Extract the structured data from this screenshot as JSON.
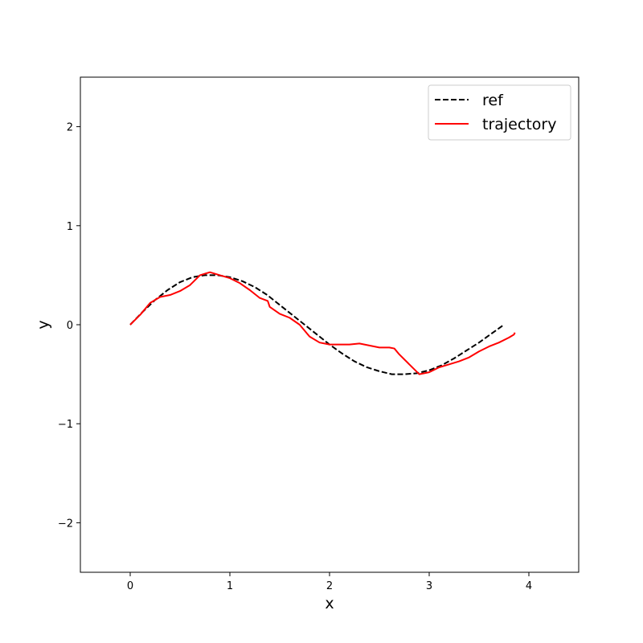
{
  "chart_data": {
    "type": "line",
    "title": "",
    "xlabel": "x",
    "ylabel": "y",
    "xlim": [
      -0.5,
      4.5
    ],
    "ylim": [
      -2.5,
      2.5
    ],
    "xticks": [
      0,
      1,
      2,
      3,
      4
    ],
    "yticks": [
      -2,
      -1,
      0,
      1,
      2
    ],
    "xtick_labels": [
      "0",
      "1",
      "2",
      "3",
      "4"
    ],
    "ytick_labels": [
      "−2",
      "−1",
      "0",
      "1",
      "2"
    ],
    "grid": false,
    "legend_position": "upper-right",
    "series": [
      {
        "name": "ref",
        "color": "#000000",
        "style": "dashed",
        "x": [
          0,
          0.125,
          0.25,
          0.375,
          0.5,
          0.625,
          0.75,
          0.875,
          1.0,
          1.125,
          1.25,
          1.375,
          1.5,
          1.625,
          1.75,
          1.875,
          2.0,
          2.125,
          2.25,
          2.375,
          2.5,
          2.625,
          2.75,
          2.875,
          3.0,
          3.125,
          3.25,
          3.375,
          3.5,
          3.625,
          3.75
        ],
        "y": [
          0,
          0.13,
          0.25,
          0.35,
          0.43,
          0.48,
          0.5,
          0.5,
          0.48,
          0.44,
          0.38,
          0.3,
          0.2,
          0.1,
          0.0,
          -0.1,
          -0.2,
          -0.29,
          -0.37,
          -0.43,
          -0.47,
          -0.5,
          -0.5,
          -0.49,
          -0.46,
          -0.41,
          -0.34,
          -0.26,
          -0.18,
          -0.09,
          0.0
        ]
      },
      {
        "name": "trajectory",
        "color": "#ff0000",
        "style": "solid",
        "x": [
          0,
          0.1,
          0.2,
          0.3,
          0.4,
          0.5,
          0.6,
          0.7,
          0.8,
          0.9,
          1.0,
          1.1,
          1.2,
          1.3,
          1.38,
          1.4,
          1.5,
          1.6,
          1.7,
          1.8,
          1.9,
          2.0,
          2.1,
          2.2,
          2.3,
          2.4,
          2.5,
          2.6,
          2.65,
          2.7,
          2.8,
          2.9,
          3.0,
          3.1,
          3.2,
          3.3,
          3.4,
          3.5,
          3.6,
          3.7,
          3.8,
          3.85,
          3.86
        ],
        "y": [
          0,
          0.1,
          0.22,
          0.28,
          0.3,
          0.34,
          0.4,
          0.5,
          0.53,
          0.5,
          0.47,
          0.42,
          0.35,
          0.27,
          0.24,
          0.18,
          0.11,
          0.07,
          0.0,
          -0.12,
          -0.18,
          -0.2,
          -0.2,
          -0.2,
          -0.19,
          -0.21,
          -0.23,
          -0.23,
          -0.24,
          -0.3,
          -0.4,
          -0.5,
          -0.48,
          -0.43,
          -0.4,
          -0.37,
          -0.33,
          -0.27,
          -0.22,
          -0.18,
          -0.13,
          -0.1,
          -0.08
        ]
      }
    ]
  }
}
